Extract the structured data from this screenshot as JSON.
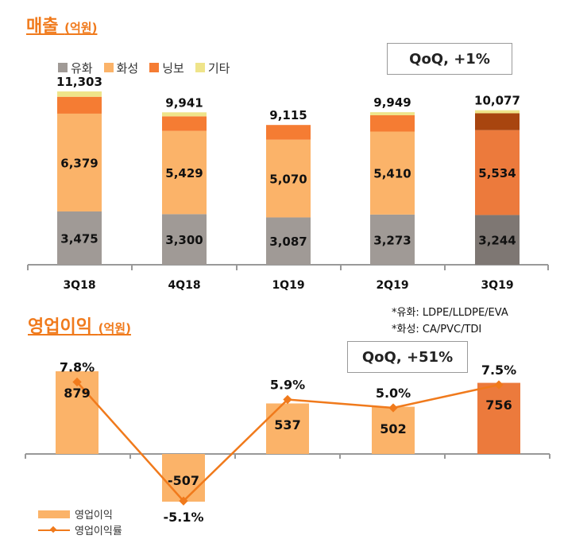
{
  "sales": {
    "title": "매출",
    "unit": "(억원)",
    "qoq": "QoQ, +1%",
    "legend": [
      {
        "name": "유화",
        "color": "#a09a96"
      },
      {
        "name": "화성",
        "color": "#fbb369"
      },
      {
        "name": "닝보",
        "color": "#f57c33"
      },
      {
        "name": "기타",
        "color": "#efe48a"
      }
    ]
  },
  "profit": {
    "title": "영업이익",
    "unit": "(억원)",
    "qoq": "QoQ, +51%",
    "legend_bar": "영업이익",
    "legend_line": "영업이익률"
  },
  "notes": [
    "*유화: LDPE/LLDPE/EVA",
    "*화성: CA/PVC/TDI"
  ],
  "chart_data": [
    {
      "type": "bar",
      "stacked": true,
      "title": "매출 (억원)",
      "categories": [
        "3Q18",
        "4Q18",
        "1Q19",
        "2Q19",
        "3Q19"
      ],
      "totals": [
        "11,303",
        "9,941",
        "9,115",
        "9,949",
        "10,077"
      ],
      "series": [
        {
          "name": "유화",
          "values": [
            3475,
            3300,
            3087,
            3273,
            3244
          ],
          "labels": [
            "3,475",
            "3,300",
            "3,087",
            "3,273",
            "3,244"
          ]
        },
        {
          "name": "화성",
          "values": [
            6379,
            5429,
            5070,
            5410,
            5534
          ],
          "labels": [
            "6,379",
            "5,429",
            "5,070",
            "5,410",
            "5,534"
          ]
        },
        {
          "name": "닝보",
          "values": [
            1100,
            950,
            958,
            1066,
            1099
          ]
        },
        {
          "name": "기타",
          "values": [
            349,
            262,
            0,
            200,
            200
          ]
        }
      ],
      "legend": "top-left",
      "grid": false
    },
    {
      "type": "bar+line",
      "title": "영업이익 (억원)",
      "categories": [
        "3Q18",
        "4Q18",
        "1Q19",
        "2Q19",
        "3Q19"
      ],
      "series": [
        {
          "name": "영업이익",
          "type": "bar",
          "values": [
            879,
            -507,
            537,
            502,
            756
          ],
          "labels": [
            "879",
            "-507",
            "537",
            "502",
            "756"
          ]
        },
        {
          "name": "영업이익률",
          "type": "line",
          "values": [
            7.8,
            -5.1,
            5.9,
            5.0,
            7.5
          ],
          "labels": [
            "7.8%",
            "-5.1%",
            "5.9%",
            "5.0%",
            "7.5%"
          ]
        }
      ],
      "legend": "bottom-left",
      "grid": false
    }
  ]
}
